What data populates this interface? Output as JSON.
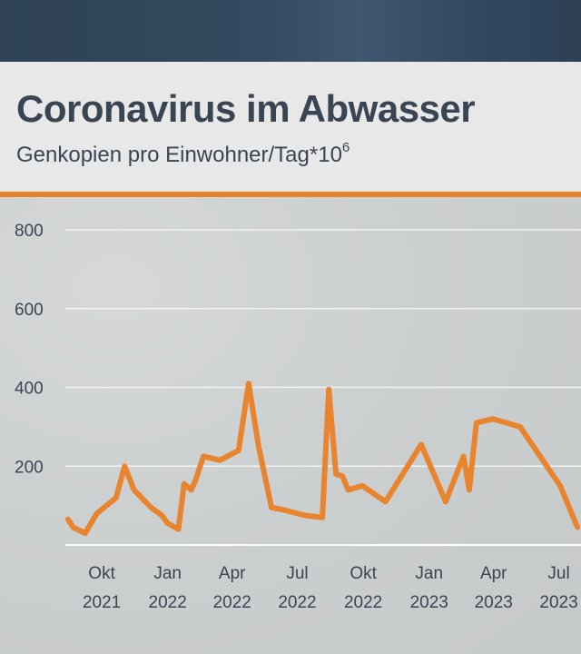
{
  "title": "Coronavirus im Abwasser",
  "subtitle": "Genkopien pro Einwohner/Tag*10",
  "subtitle_exponent": "6",
  "colors": {
    "line": "#e8832e",
    "accent": "#e8832e",
    "text": "#3a4553",
    "grid": "#f2f2f2",
    "top_band": "#2e4156"
  },
  "chart_data": {
    "type": "line",
    "title": "Coronavirus im Abwasser",
    "ylabel": "Genkopien pro Einwohner/Tag*10^6",
    "xlabel": "",
    "ylim": [
      0,
      800
    ],
    "yticks": [
      800,
      600,
      400,
      200
    ],
    "xlim": [
      "2021-08-15",
      "2023-08-01"
    ],
    "grid": true,
    "xticks": [
      {
        "date": "2021-10-01",
        "month": "Okt",
        "year": "2021"
      },
      {
        "date": "2022-01-01",
        "month": "Jan",
        "year": "2022"
      },
      {
        "date": "2022-04-01",
        "month": "Apr",
        "year": "2022"
      },
      {
        "date": "2022-07-01",
        "month": "Jul",
        "year": "2022"
      },
      {
        "date": "2022-10-01",
        "month": "Okt",
        "year": "2022"
      },
      {
        "date": "2023-01-01",
        "month": "Jan",
        "year": "2023"
      },
      {
        "date": "2023-04-01",
        "month": "Apr",
        "year": "2023"
      },
      {
        "date": "2023-07-01",
        "month": "Jul",
        "year": "2023"
      }
    ],
    "series": [
      {
        "x": [
          "2021-08-15",
          "2021-08-22",
          "2021-09-08",
          "2021-09-24",
          "2021-10-21",
          "2021-11-02",
          "2021-11-15",
          "2021-12-09",
          "2021-12-24",
          "2022-01-01",
          "2022-01-16",
          "2022-01-24",
          "2022-02-03",
          "2022-02-09",
          "2022-02-20",
          "2022-03-15",
          "2022-04-10",
          "2022-04-24",
          "2022-05-08",
          "2022-05-26",
          "2022-06-10",
          "2022-07-12",
          "2022-08-05",
          "2022-08-14",
          "2022-08-24",
          "2022-09-02",
          "2022-09-10",
          "2022-09-30",
          "2022-11-01",
          "2022-12-21",
          "2023-01-24",
          "2023-02-18",
          "2023-02-26",
          "2023-03-08",
          "2023-03-31",
          "2023-05-08",
          "2023-07-03",
          "2023-07-27"
        ],
        "y": [
          65,
          45,
          30,
          80,
          120,
          200,
          140,
          95,
          75,
          55,
          40,
          155,
          140,
          165,
          225,
          215,
          240,
          410,
          250,
          95,
          90,
          75,
          70,
          395,
          180,
          175,
          140,
          150,
          110,
          255,
          110,
          225,
          140,
          310,
          320,
          300,
          150,
          45
        ]
      }
    ]
  }
}
